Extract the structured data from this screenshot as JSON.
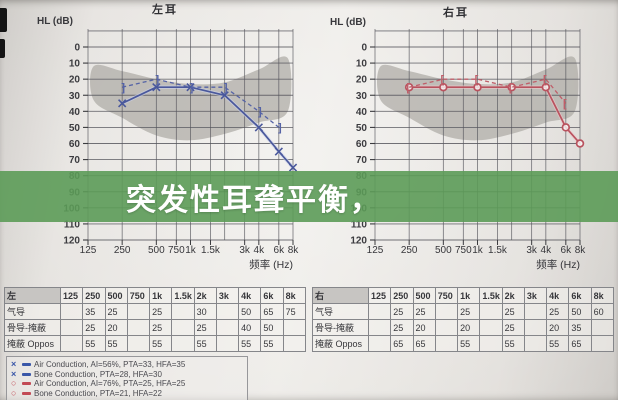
{
  "banner": {
    "text": "突发性耳聋平衡，",
    "background": "#5c9b58",
    "text_color": "#ffffff"
  },
  "charts": {
    "left": {
      "title": "左耳",
      "y_axis_label": "HL (dB)",
      "x_axis_label": "频率 (Hz)"
    },
    "right": {
      "title": "右耳",
      "y_axis_label": "HL (dB)",
      "x_axis_label": "频率 (Hz)"
    }
  },
  "chart_data": [
    {
      "type": "line",
      "ear": "left",
      "title": "左耳",
      "xlabel": "频率 (Hz)",
      "ylabel": "HL (dB)",
      "x_scale": "log2",
      "x_grid_hz": [
        125,
        250,
        500,
        750,
        1000,
        1500,
        2000,
        3000,
        4000,
        6000,
        8000
      ],
      "x_tick_labels": [
        {
          "hz": 125,
          "label": "125"
        },
        {
          "hz": 250,
          "label": "250"
        },
        {
          "hz": 500,
          "label": "500"
        },
        {
          "hz": 750,
          "label": "750"
        },
        {
          "hz": 1000,
          "label": "1k"
        },
        {
          "hz": 1500,
          "label": "1.5k"
        },
        {
          "hz": 3000,
          "label": "3k"
        },
        {
          "hz": 4000,
          "label": "4k"
        },
        {
          "hz": 6000,
          "label": "6k"
        },
        {
          "hz": 8000,
          "label": "8k"
        }
      ],
      "ylim": [
        -10,
        120
      ],
      "y_ticks": [
        0,
        10,
        20,
        30,
        40,
        50,
        60,
        70,
        80,
        90,
        100,
        110,
        120
      ],
      "grid": true,
      "series": [
        {
          "name": "air-conduction",
          "marker": "x",
          "line": "solid",
          "color": "#4a589c",
          "halo": "#c9d0ea",
          "points": [
            [
              250,
              35
            ],
            [
              500,
              25
            ],
            [
              1000,
              25
            ],
            [
              2000,
              30
            ],
            [
              4000,
              50
            ],
            [
              6000,
              65
            ],
            [
              8000,
              75
            ]
          ]
        },
        {
          "name": "bone-conduction-masked",
          "marker": "bracket-right",
          "line": "dashed",
          "color": "#5563a6",
          "halo": "",
          "points": [
            [
              250,
              25
            ],
            [
              500,
              20
            ],
            [
              1000,
              25
            ],
            [
              2000,
              25
            ],
            [
              4000,
              40
            ],
            [
              6000,
              50
            ]
          ]
        }
      ],
      "shaded_region": {
        "color": "#adaaa5",
        "top": [
          [
            140,
            12
          ],
          [
            250,
            15
          ],
          [
            500,
            20
          ],
          [
            1000,
            23
          ],
          [
            2000,
            22
          ],
          [
            4000,
            14
          ],
          [
            7200,
            7
          ]
        ],
        "bottom": [
          [
            7200,
            40
          ],
          [
            4000,
            47
          ],
          [
            2000,
            54
          ],
          [
            1000,
            58
          ],
          [
            500,
            55
          ],
          [
            250,
            44
          ],
          [
            140,
            33
          ]
        ]
      }
    },
    {
      "type": "line",
      "ear": "right",
      "title": "右耳",
      "xlabel": "频率 (Hz)",
      "ylabel": "HL (dB)",
      "x_scale": "log2",
      "x_grid_hz": [
        125,
        250,
        500,
        750,
        1000,
        1500,
        2000,
        3000,
        4000,
        6000,
        8000
      ],
      "x_tick_labels": [
        {
          "hz": 125,
          "label": "125"
        },
        {
          "hz": 250,
          "label": "250"
        },
        {
          "hz": 500,
          "label": "500"
        },
        {
          "hz": 750,
          "label": "750"
        },
        {
          "hz": 1000,
          "label": "1k"
        },
        {
          "hz": 1500,
          "label": "1.5k"
        },
        {
          "hz": 3000,
          "label": "3k"
        },
        {
          "hz": 4000,
          "label": "4k"
        },
        {
          "hz": 6000,
          "label": "6k"
        },
        {
          "hz": 8000,
          "label": "8k"
        }
      ],
      "ylim": [
        -10,
        120
      ],
      "y_ticks": [
        0,
        10,
        20,
        30,
        40,
        50,
        60,
        70,
        80,
        90,
        100,
        110,
        120
      ],
      "grid": true,
      "series": [
        {
          "name": "air-conduction",
          "marker": "o",
          "line": "solid",
          "color": "#b9525e",
          "halo": "#ecc6c9",
          "points": [
            [
              250,
              25
            ],
            [
              500,
              25
            ],
            [
              1000,
              25
            ],
            [
              2000,
              25
            ],
            [
              4000,
              25
            ],
            [
              6000,
              50
            ],
            [
              8000,
              60
            ]
          ]
        },
        {
          "name": "bone-conduction-masked",
          "marker": "bracket-left",
          "line": "dashed",
          "color": "#bf5f6a",
          "halo": "",
          "points": [
            [
              250,
              25
            ],
            [
              500,
              20
            ],
            [
              1000,
              20
            ],
            [
              2000,
              25
            ],
            [
              4000,
              20
            ],
            [
              6000,
              35
            ]
          ]
        }
      ],
      "shaded_region": {
        "color": "#adaaa5",
        "top": [
          [
            140,
            12
          ],
          [
            250,
            15
          ],
          [
            500,
            20
          ],
          [
            1000,
            23
          ],
          [
            2000,
            22
          ],
          [
            4000,
            14
          ],
          [
            7200,
            7
          ]
        ],
        "bottom": [
          [
            7200,
            40
          ],
          [
            4000,
            47
          ],
          [
            2000,
            54
          ],
          [
            1000,
            58
          ],
          [
            500,
            55
          ],
          [
            250,
            44
          ],
          [
            140,
            33
          ]
        ]
      }
    }
  ],
  "tables": {
    "left": {
      "header": [
        "左",
        "125",
        "250",
        "500",
        "750",
        "1k",
        "1.5k",
        "2k",
        "3k",
        "4k",
        "6k",
        "8k"
      ],
      "rows": [
        {
          "label": "气导",
          "values": [
            "",
            "35",
            "25",
            "",
            "25",
            "",
            "30",
            "",
            "50",
            "65",
            "75"
          ]
        },
        {
          "label": "骨导-掩蔽",
          "values": [
            "",
            "25",
            "20",
            "",
            "25",
            "",
            "25",
            "",
            "40",
            "50",
            ""
          ]
        },
        {
          "label": "掩蔽 Oppos",
          "values": [
            "",
            "55",
            "55",
            "",
            "55",
            "",
            "55",
            "",
            "55",
            "55",
            ""
          ]
        }
      ]
    },
    "right": {
      "header": [
        "右",
        "125",
        "250",
        "500",
        "750",
        "1k",
        "1.5k",
        "2k",
        "3k",
        "4k",
        "6k",
        "8k"
      ],
      "rows": [
        {
          "label": "气导",
          "values": [
            "",
            "25",
            "25",
            "",
            "25",
            "",
            "25",
            "",
            "25",
            "50",
            "60"
          ]
        },
        {
          "label": "骨导-掩蔽",
          "values": [
            "",
            "25",
            "20",
            "",
            "20",
            "",
            "25",
            "",
            "20",
            "35",
            ""
          ]
        },
        {
          "label": "掩蔽 Oppos",
          "values": [
            "",
            "65",
            "65",
            "",
            "55",
            "",
            "55",
            "",
            "55",
            "65",
            ""
          ]
        }
      ]
    }
  },
  "legend": {
    "items": [
      {
        "symbol": "×",
        "color": "#3a57a8",
        "label": "Air Conduction, AI=56%, PTA=33, HFA=35"
      },
      {
        "symbol": "×",
        "color": "#3a57a8",
        "label": "Bone Conduction, PTA=28, HFA=30"
      },
      {
        "symbol": "○",
        "color": "#c24a55",
        "label": "Air Conduction, AI=76%, PTA=25, HFA=25"
      },
      {
        "symbol": "○",
        "color": "#c24a55",
        "label": "Bone Conduction, PTA=21, HFA=22"
      }
    ]
  },
  "colors": {
    "banner_green": "#5c9b58",
    "left_series_blue": "#4a589c",
    "right_series_red": "#b9525e",
    "shaded_region_gray": "#adaaa5",
    "grid_line": "#55555c"
  }
}
